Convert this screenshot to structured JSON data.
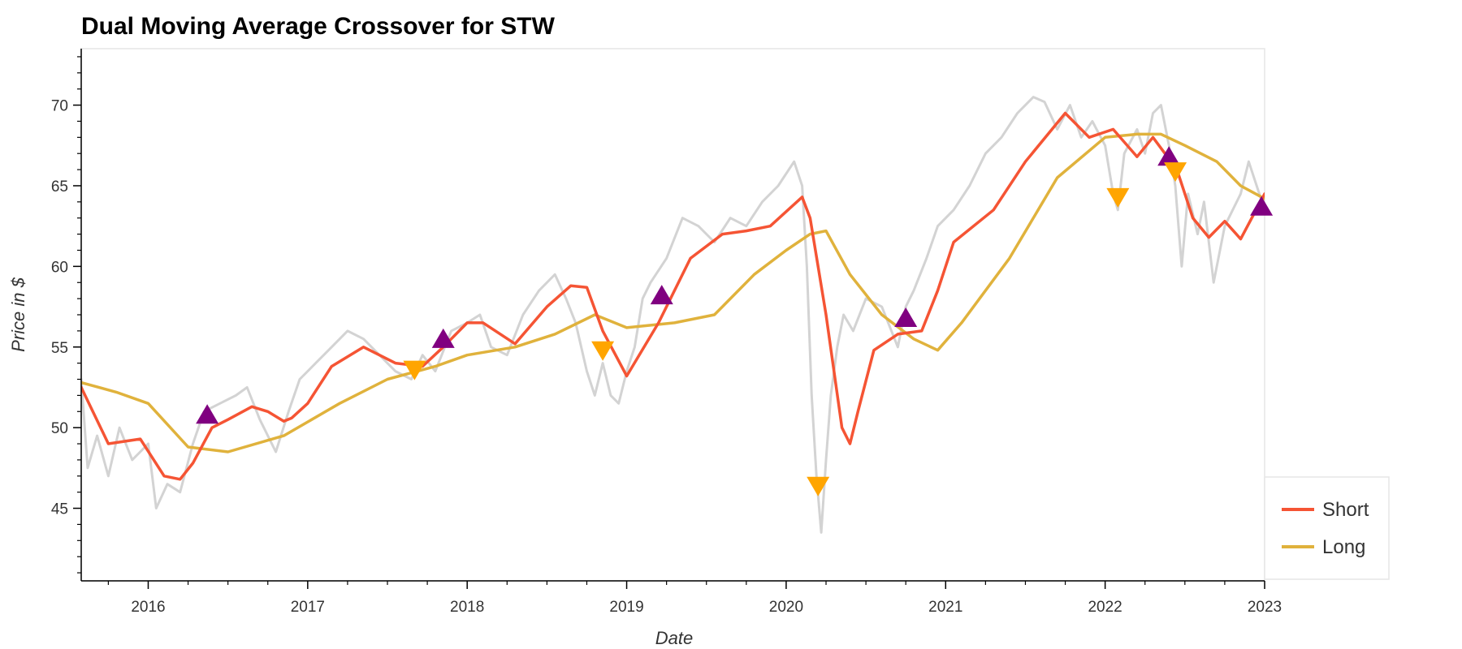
{
  "chart_data": {
    "type": "line",
    "title": "Dual Moving Average Crossover for STW",
    "xlabel": "Date",
    "ylabel": "Price in $",
    "xlim": [
      2015.58,
      2023.0
    ],
    "ylim": [
      40.5,
      73.5
    ],
    "x_ticks": [
      2016,
      2017,
      2018,
      2019,
      2020,
      2021,
      2022,
      2023
    ],
    "y_ticks": [
      45,
      50,
      55,
      60,
      65,
      70
    ],
    "grid": false,
    "legend": {
      "position": "bottom-right",
      "entries": [
        "Short",
        "Long"
      ]
    },
    "colors": {
      "price": "#d3d3d3",
      "short": "#f55434",
      "long": "#e0b23c",
      "buy": "#800080",
      "sell": "#ffa500"
    },
    "series": [
      {
        "name": "Short",
        "x": [
          2015.58,
          2015.75,
          2015.95,
          2016.1,
          2016.2,
          2016.28,
          2016.4,
          2016.5,
          2016.65,
          2016.75,
          2016.85,
          2016.9,
          2017.0,
          2017.15,
          2017.35,
          2017.55,
          2017.72,
          2017.85,
          2018.0,
          2018.1,
          2018.3,
          2018.5,
          2018.65,
          2018.75,
          2018.85,
          2019.0,
          2019.2,
          2019.4,
          2019.6,
          2019.75,
          2019.9,
          2020.1,
          2020.15,
          2020.25,
          2020.35,
          2020.4,
          2020.45,
          2020.55,
          2020.7,
          2020.85,
          2020.95,
          2021.05,
          2021.3,
          2021.5,
          2021.75,
          2021.9,
          2022.05,
          2022.2,
          2022.3,
          2022.45,
          2022.55,
          2022.65,
          2022.75,
          2022.85,
          2023.0
        ],
        "values": [
          52.5,
          49.0,
          49.3,
          47.0,
          46.8,
          47.8,
          50.0,
          50.5,
          51.3,
          51.0,
          50.4,
          50.6,
          51.5,
          53.8,
          55.0,
          54.0,
          53.8,
          55.0,
          56.5,
          56.5,
          55.2,
          57.5,
          58.8,
          58.7,
          56.0,
          53.2,
          56.5,
          60.5,
          62.0,
          62.2,
          62.5,
          64.3,
          63.0,
          57.0,
          50.0,
          49.0,
          51.0,
          54.8,
          55.8,
          56.0,
          58.5,
          61.5,
          63.5,
          66.5,
          69.5,
          68.0,
          68.5,
          66.8,
          68.0,
          66.0,
          63.0,
          61.8,
          62.8,
          61.7,
          64.5
        ]
      },
      {
        "name": "Long",
        "x": [
          2015.58,
          2015.8,
          2016.0,
          2016.25,
          2016.5,
          2016.85,
          2017.2,
          2017.5,
          2017.8,
          2018.0,
          2018.3,
          2018.55,
          2018.8,
          2019.0,
          2019.3,
          2019.55,
          2019.8,
          2020.0,
          2020.15,
          2020.25,
          2020.4,
          2020.6,
          2020.8,
          2020.95,
          2021.1,
          2021.4,
          2021.7,
          2022.0,
          2022.2,
          2022.35,
          2022.5,
          2022.7,
          2022.85,
          2023.0
        ],
        "values": [
          52.8,
          52.2,
          51.5,
          48.8,
          48.5,
          49.5,
          51.5,
          53.0,
          53.8,
          54.5,
          55.0,
          55.8,
          57.0,
          56.2,
          56.5,
          57.0,
          59.5,
          61.0,
          62.0,
          62.2,
          59.5,
          57.0,
          55.5,
          54.8,
          56.5,
          60.5,
          65.5,
          68.0,
          68.2,
          68.2,
          67.5,
          66.5,
          65.0,
          64.2
        ]
      },
      {
        "name": "Price",
        "x": [
          2015.58,
          2015.62,
          2015.68,
          2015.75,
          2015.82,
          2015.9,
          2016.0,
          2016.05,
          2016.12,
          2016.2,
          2016.28,
          2016.35,
          2016.45,
          2016.55,
          2016.62,
          2016.7,
          2016.8,
          2016.88,
          2016.95,
          2017.05,
          2017.15,
          2017.25,
          2017.35,
          2017.45,
          2017.55,
          2017.65,
          2017.72,
          2017.8,
          2017.9,
          2018.0,
          2018.08,
          2018.15,
          2018.25,
          2018.35,
          2018.45,
          2018.55,
          2018.62,
          2018.68,
          2018.75,
          2018.8,
          2018.85,
          2018.9,
          2018.95,
          2019.0,
          2019.05,
          2019.1,
          2019.15,
          2019.25,
          2019.35,
          2019.45,
          2019.55,
          2019.65,
          2019.75,
          2019.85,
          2019.95,
          2020.05,
          2020.1,
          2020.13,
          2020.16,
          2020.19,
          2020.22,
          2020.25,
          2020.28,
          2020.32,
          2020.36,
          2020.42,
          2020.5,
          2020.6,
          2020.7,
          2020.75,
          2020.8,
          2020.88,
          2020.95,
          2021.05,
          2021.15,
          2021.25,
          2021.35,
          2021.45,
          2021.55,
          2021.62,
          2021.7,
          2021.78,
          2021.85,
          2021.92,
          2022.0,
          2022.05,
          2022.08,
          2022.12,
          2022.2,
          2022.25,
          2022.3,
          2022.35,
          2022.4,
          2022.44,
          2022.48,
          2022.52,
          2022.58,
          2022.62,
          2022.68,
          2022.75,
          2022.8,
          2022.85,
          2022.9,
          2022.95,
          2023.0
        ],
        "values": [
          53.0,
          47.5,
          49.5,
          47.0,
          50.0,
          48.0,
          49.0,
          45.0,
          46.5,
          46.0,
          49.0,
          51.0,
          51.5,
          52.0,
          52.5,
          50.5,
          48.5,
          51.0,
          53.0,
          54.0,
          55.0,
          56.0,
          55.5,
          54.5,
          53.5,
          53.0,
          54.5,
          53.5,
          56.0,
          56.5,
          57.0,
          55.0,
          54.5,
          57.0,
          58.5,
          59.5,
          58.0,
          56.5,
          53.5,
          52.0,
          54.0,
          52.0,
          51.5,
          53.5,
          55.0,
          58.0,
          59.0,
          60.5,
          63.0,
          62.5,
          61.5,
          63.0,
          62.5,
          64.0,
          65.0,
          66.5,
          65.0,
          60.0,
          52.0,
          47.0,
          43.5,
          48.0,
          52.0,
          55.0,
          57.0,
          56.0,
          58.0,
          57.5,
          55.0,
          57.5,
          58.5,
          60.5,
          62.5,
          63.5,
          65.0,
          67.0,
          68.0,
          69.5,
          70.5,
          70.2,
          68.5,
          70.0,
          68.0,
          69.0,
          67.5,
          64.5,
          63.5,
          67.0,
          68.5,
          67.0,
          69.5,
          70.0,
          67.5,
          65.0,
          60.0,
          64.5,
          62.0,
          64.0,
          59.0,
          62.5,
          63.5,
          64.5,
          66.5,
          65.0,
          63.5
        ]
      }
    ],
    "buy_signals": {
      "x": [
        2016.37,
        2017.85,
        2019.22,
        2020.75,
        2022.4,
        2022.98
      ],
      "y": [
        50.8,
        55.5,
        58.2,
        56.8,
        66.8,
        63.7
      ]
    },
    "sell_signals": {
      "x": [
        2017.67,
        2018.85,
        2020.2,
        2022.08,
        2022.44
      ],
      "y": [
        53.6,
        54.8,
        46.4,
        64.3,
        65.9
      ]
    }
  }
}
